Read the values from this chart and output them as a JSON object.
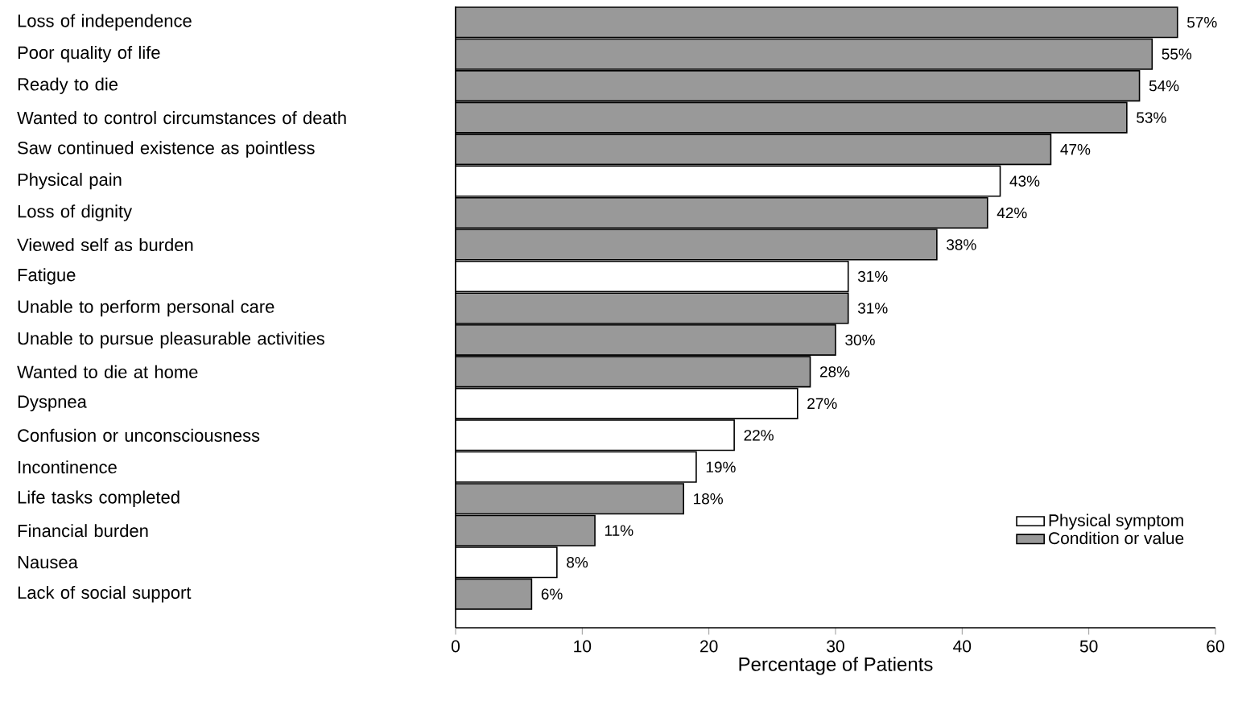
{
  "chart_data": {
    "type": "bar",
    "orientation": "horizontal",
    "xlabel": "Percentage of Patients",
    "categories": [
      "Loss of independence",
      "Poor quality of life",
      "Ready to die",
      "Wanted to control circumstances of death",
      "Saw continued existence as pointless",
      "Physical pain",
      "Loss of dignity",
      "Viewed self as burden",
      "Fatigue",
      "Unable to perform personal care",
      "Unable to pursue pleasurable activities",
      "Wanted to die at home",
      "Dyspnea",
      "Confusion or unconsciousness",
      "Incontinence",
      "Life tasks completed",
      "Financial burden",
      "Nausea",
      "Lack of social support"
    ],
    "series": [
      {
        "name": "Physical symptom",
        "color": "#ffffff",
        "values": [
          null,
          null,
          null,
          null,
          null,
          43,
          null,
          null,
          31,
          null,
          null,
          null,
          27,
          22,
          19,
          null,
          null,
          8,
          null
        ],
        "value_labels": [
          null,
          null,
          null,
          null,
          null,
          "43%",
          null,
          null,
          "31%",
          null,
          null,
          null,
          "27%",
          "22%",
          "19%",
          null,
          null,
          "8%",
          null
        ]
      },
      {
        "name": "Condition or value",
        "color": "#999999",
        "values": [
          57,
          55,
          54,
          53,
          47,
          null,
          42,
          38,
          null,
          31,
          30,
          28,
          null,
          null,
          null,
          18,
          11,
          null,
          6
        ],
        "value_labels": [
          "57%",
          "55%",
          "54%",
          "53%",
          "47%",
          null,
          "42%",
          "38%",
          null,
          "31%",
          "30%",
          "28%",
          null,
          null,
          null,
          "18%",
          "11%",
          null,
          "6%"
        ]
      }
    ],
    "xlim": [
      0,
      60
    ],
    "xticks": [
      0,
      10,
      20,
      30,
      40,
      50,
      60
    ],
    "legend": "bottom right",
    "grid": false
  }
}
